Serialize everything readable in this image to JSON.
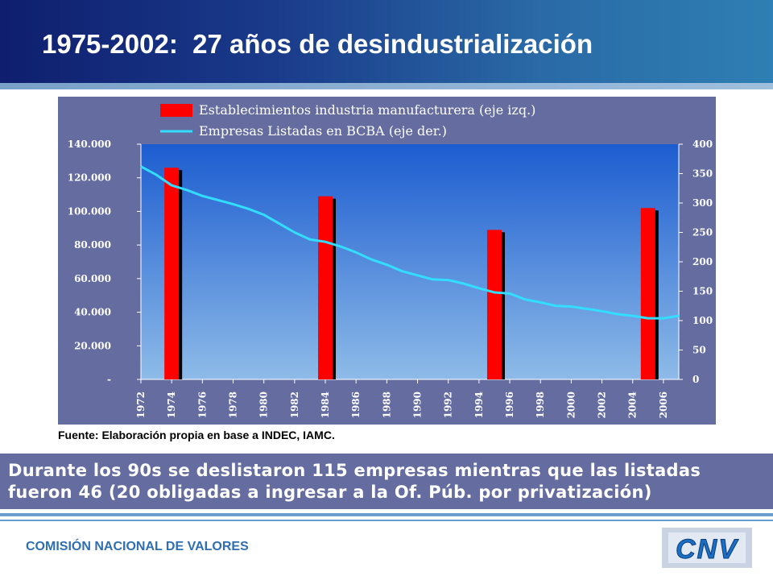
{
  "header": {
    "title": "1975-2002:  27 años de desindustrialización"
  },
  "source": "Fuente: Elaboración propia en base a INDEC, IAMC.",
  "callout": "Durante los 90s se deslistaron 115 empresas mientras que las listadas fueron 46 (20 obligadas a ingresar a la Of. Púb. por privatización)",
  "footer": {
    "org": "COMISIÓN NACIONAL DE VALORES",
    "logo_text": "CNV"
  },
  "colors": {
    "header": "#1a3a8a",
    "chart_frame": "#646ca0",
    "bars": "#ff0000",
    "line": "#33ddff",
    "callout": "#646ca0",
    "footer_text": "#2e6fb3"
  },
  "chart_data": {
    "type": "bar",
    "combo": "bar+line",
    "legend_position": "top",
    "grid": false,
    "x_ticks": [
      "1972",
      "1974",
      "1976",
      "1978",
      "1980",
      "1982",
      "1984",
      "1986",
      "1988",
      "1990",
      "1992",
      "1994",
      "1996",
      "1998",
      "2000",
      "2002",
      "2004",
      "2006"
    ],
    "xlim": [
      1972,
      2007
    ],
    "left_axis": {
      "ylim": [
        0,
        140000
      ],
      "tick_labels": [
        "-",
        "20.000",
        "40.000",
        "60.000",
        "80.000",
        "100.000",
        "120.000",
        "140.000"
      ]
    },
    "right_axis": {
      "ylim": [
        0,
        400
      ],
      "tick_labels": [
        "0",
        "50",
        "100",
        "150",
        "200",
        "250",
        "300",
        "350",
        "400"
      ]
    },
    "series": [
      {
        "name": "Establecimientos industria manufacturera (eje izq.)",
        "type": "bar",
        "axis": "left",
        "x": [
          1974,
          1984,
          1995,
          2005
        ],
        "values": [
          126000,
          109000,
          89000,
          102000
        ]
      },
      {
        "name": "Empresas Listadas en BCBA (eje der.)",
        "type": "line",
        "axis": "right",
        "x": [
          1972,
          1973,
          1974,
          1975,
          1976,
          1977,
          1978,
          1979,
          1980,
          1981,
          1982,
          1983,
          1984,
          1985,
          1986,
          1987,
          1988,
          1989,
          1990,
          1991,
          1992,
          1993,
          1994,
          1995,
          1996,
          1997,
          1998,
          1999,
          2000,
          2001,
          2002,
          2003,
          2004,
          2005,
          2006,
          2007
        ],
        "values": [
          362,
          348,
          330,
          322,
          312,
          305,
          298,
          290,
          280,
          265,
          250,
          238,
          234,
          226,
          216,
          204,
          195,
          184,
          177,
          170,
          169,
          163,
          155,
          148,
          146,
          136,
          131,
          125,
          124,
          120,
          116,
          111,
          108,
          104,
          104,
          108
        ]
      }
    ]
  }
}
